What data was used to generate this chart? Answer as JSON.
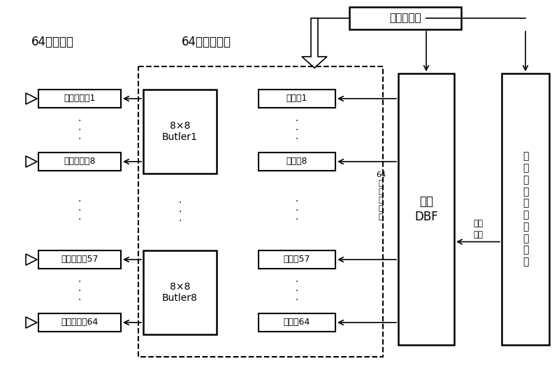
{
  "bg_color": "#ffffff",
  "line_color": "#000000",
  "label_64yuan": "64元馈源阵",
  "label_64lu": "64路发射通道",
  "label_tongyi": "统一频率源",
  "label_fashe_dbf": "发射\nDBF",
  "label_64lu_pin": "64\n路\n射\n频\n信\n号",
  "label_shuzi": "数字\n信号",
  "label_fashe_xi": "发\n射\n系\n统\n通\n道\n校\n准\n模\n块",
  "label_butler1": "8×8\nButler1",
  "label_butler8": "8×8\nButler8",
  "duplexers": [
    "收发双工器1",
    "收发双工器8",
    "收发双工器57",
    "收发双工器64"
  ],
  "transmitters": [
    "发射机1",
    "发射机8",
    "发射机57",
    "发射机64"
  ]
}
